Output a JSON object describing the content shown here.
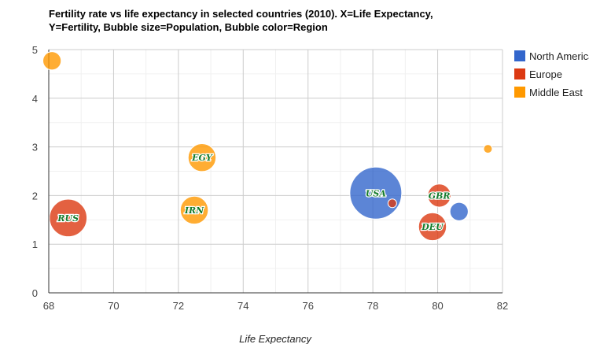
{
  "chart_data": {
    "type": "scatter",
    "subtype": "bubble",
    "title_line_1": "Fertility rate vs life expectancy in selected countries (2010). X=Life Expectancy,",
    "title_line_2": "Y=Fertility, Bubble size=Population, Bubble color=Region",
    "xlabel": "Life Expectancy",
    "ylabel": "",
    "xlim": [
      68,
      82
    ],
    "ylim": [
      0,
      5
    ],
    "x_ticks": [
      "68",
      "70",
      "72",
      "74",
      "76",
      "78",
      "80",
      "82"
    ],
    "y_ticks": [
      "0",
      "1",
      "2",
      "3",
      "4",
      "5"
    ],
    "grid": true,
    "legend_position": "right",
    "legend": [
      {
        "name": "North America",
        "color": "#3366cc"
      },
      {
        "name": "Europe",
        "color": "#dc3912"
      },
      {
        "name": "Middle East",
        "color": "#ff9900"
      }
    ],
    "points": [
      {
        "label": "",
        "x": 68.1,
        "y": 4.77,
        "region": "Middle East",
        "size_rank": 3
      },
      {
        "label": "RUS",
        "x": 68.6,
        "y": 1.54,
        "region": "Europe",
        "size_rank": 7
      },
      {
        "label": "EGY",
        "x": 72.73,
        "y": 2.78,
        "region": "Middle East",
        "size_rank": 5
      },
      {
        "label": "IRN",
        "x": 72.49,
        "y": 1.7,
        "region": "Middle East",
        "size_rank": 5
      },
      {
        "label": "USA",
        "x": 78.09,
        "y": 2.05,
        "region": "North America",
        "size_rank": 10
      },
      {
        "label": "",
        "x": 78.6,
        "y": 1.84,
        "region": "Europe",
        "size_rank": 1
      },
      {
        "label": "GBR",
        "x": 80.05,
        "y": 2.0,
        "region": "Europe",
        "size_rank": 4
      },
      {
        "label": "DEU",
        "x": 79.84,
        "y": 1.36,
        "region": "Europe",
        "size_rank": 5
      },
      {
        "label": "",
        "x": 80.66,
        "y": 1.67,
        "region": "North America",
        "size_rank": 3
      },
      {
        "label": "",
        "x": 81.55,
        "y": 2.96,
        "region": "Middle East",
        "size_rank": 1
      }
    ]
  }
}
